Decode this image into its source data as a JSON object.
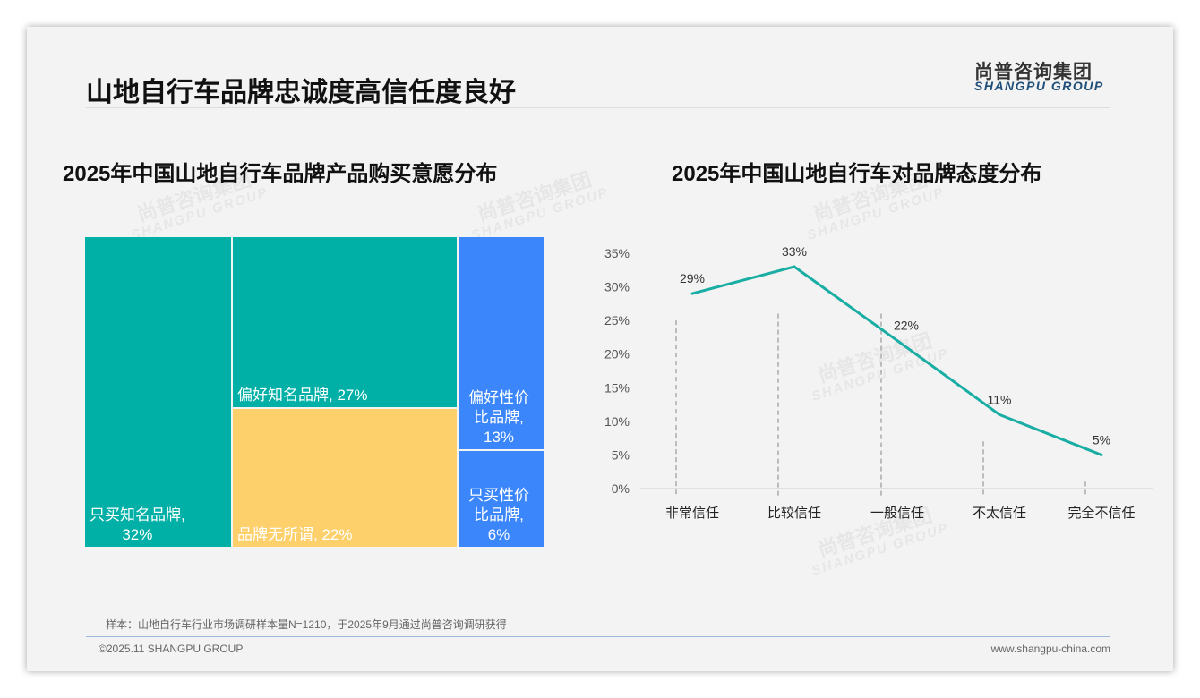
{
  "header": {
    "title": "山地自行车品牌忠诚度高信任度良好",
    "logo_cn": "尚普咨询集团",
    "logo_en": "SHANGPU GROUP"
  },
  "watermark": {
    "cn": "尚普咨询集团",
    "en": "SHANGPU GROUP"
  },
  "footer": {
    "note": "样本：山地自行车行业市场调研样本量N=1210，于2025年9月通过尚普咨询调研获得",
    "copyright": "©2025.11 SHANGPU GROUP",
    "url": "www.shangpu-china.com"
  },
  "colors": {
    "teal": "#00b0a6",
    "yellow": "#fdd06c",
    "blue": "#3a86fa",
    "line": "#1aada4"
  },
  "chart_data": [
    {
      "type": "treemap",
      "title": "2025年中国山地自行车品牌产品购买意愿分布",
      "items": [
        {
          "label": "只买知名品牌,",
          "value_label": "32%",
          "value": 32,
          "color": "teal"
        },
        {
          "label": "偏好知名品牌, 27%",
          "value": 27,
          "color": "teal"
        },
        {
          "label": "品牌无所谓, 22%",
          "value": 22,
          "color": "yellow"
        },
        {
          "label": "偏好性价比品牌,",
          "value_label": "13%",
          "value": 13,
          "color": "blue"
        },
        {
          "label": "只买性价比品牌,",
          "value_label": "6%",
          "value": 6,
          "color": "blue"
        }
      ]
    },
    {
      "type": "line",
      "title": "2025年中国山地自行车对品牌态度分布",
      "categories": [
        "非常信任",
        "比较信任",
        "一般信任",
        "不太信任",
        "完全不信任"
      ],
      "values": [
        29,
        33,
        22,
        11,
        5
      ],
      "data_labels": [
        "29%",
        "33%",
        "22%",
        "11%",
        "5%"
      ],
      "yticks": [
        "0%",
        "5%",
        "10%",
        "15%",
        "20%",
        "25%",
        "30%",
        "35%"
      ],
      "ylim": [
        0,
        35
      ],
      "grid": false
    }
  ]
}
